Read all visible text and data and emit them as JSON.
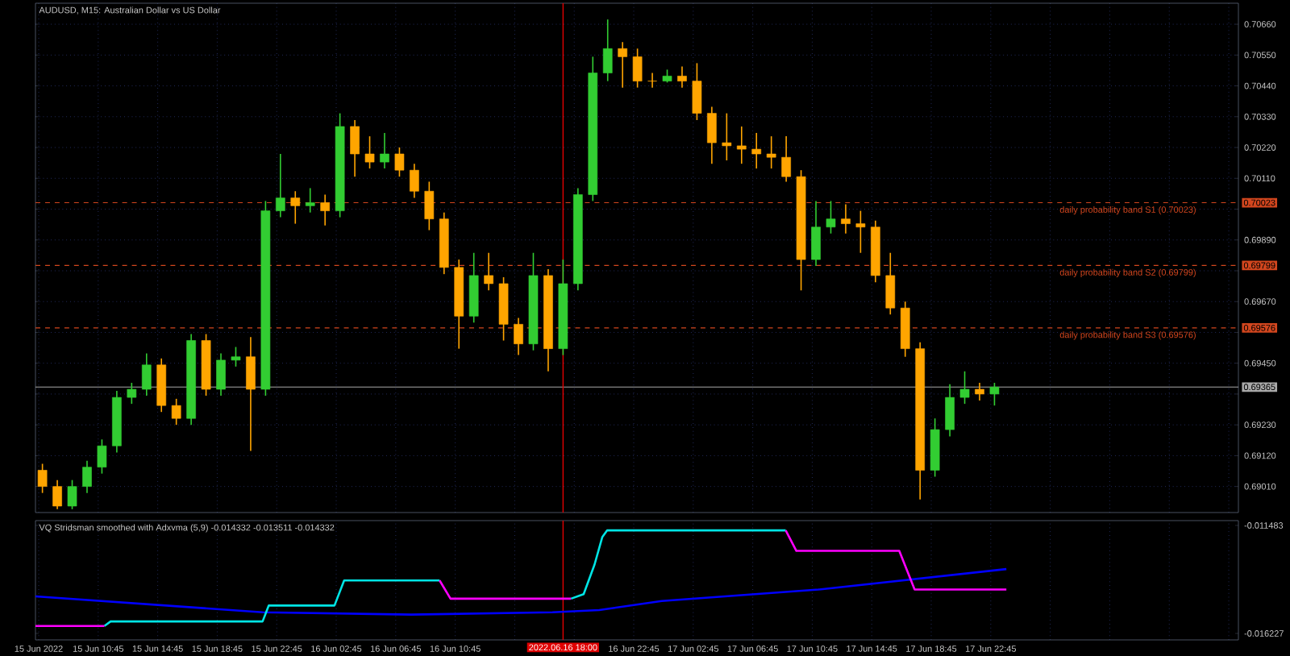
{
  "chart_data": [
    {
      "type": "candlestick",
      "title": "AUDUSD, M15:  Australian Dollar vs US Dollar",
      "x": [
        "2022-06-15T07:00",
        "2022-06-15T08:00",
        "2022-06-15T09:00",
        "2022-06-15T10:00",
        "2022-06-15T11:00",
        "2022-06-15T12:00",
        "2022-06-15T13:00",
        "2022-06-15T14:00",
        "2022-06-15T15:00",
        "2022-06-15T16:00",
        "2022-06-15T17:00",
        "2022-06-15T18:00",
        "2022-06-15T19:00",
        "2022-06-15T20:00",
        "2022-06-15T21:00",
        "2022-06-15T22:00",
        "2022-06-15T23:00",
        "2022-06-16T00:00",
        "2022-06-16T01:00",
        "2022-06-16T02:00",
        "2022-06-16T03:00",
        "2022-06-16T04:00",
        "2022-06-16T05:00",
        "2022-06-16T06:00",
        "2022-06-16T07:00",
        "2022-06-16T08:00",
        "2022-06-16T09:00",
        "2022-06-16T10:00",
        "2022-06-16T11:00",
        "2022-06-16T12:00",
        "2022-06-16T13:00",
        "2022-06-16T14:00",
        "2022-06-16T15:00",
        "2022-06-16T16:00",
        "2022-06-16T17:00",
        "2022-06-16T18:00",
        "2022-06-16T19:00",
        "2022-06-16T20:00",
        "2022-06-16T21:00",
        "2022-06-16T22:00",
        "2022-06-16T23:00",
        "2022-06-17T00:00",
        "2022-06-17T01:00",
        "2022-06-17T02:00",
        "2022-06-17T03:00",
        "2022-06-17T04:00",
        "2022-06-17T05:00",
        "2022-06-17T06:00",
        "2022-06-17T07:00",
        "2022-06-17T08:00",
        "2022-06-17T09:00",
        "2022-06-17T10:00",
        "2022-06-17T11:00",
        "2022-06-17T12:00",
        "2022-06-17T13:00",
        "2022-06-17T14:00",
        "2022-06-17T15:00",
        "2022-06-17T16:00",
        "2022-06-17T17:00",
        "2022-06-17T18:00",
        "2022-06-17T19:00",
        "2022-06-17T20:00",
        "2022-06-17T21:00",
        "2022-06-17T22:00",
        "2022-06-17T23:00"
      ],
      "ohlc": [
        [
          0.69068,
          0.69091,
          0.68987,
          0.6901
        ],
        [
          0.6901,
          0.69033,
          0.68929,
          0.6894
        ],
        [
          0.6894,
          0.69033,
          0.68929,
          0.6901
        ],
        [
          0.6901,
          0.69102,
          0.68987,
          0.69079
        ],
        [
          0.69079,
          0.69178,
          0.69056,
          0.69155
        ],
        [
          0.69155,
          0.69351,
          0.69131,
          0.69328
        ],
        [
          0.69328,
          0.6938,
          0.69305,
          0.69357
        ],
        [
          0.69357,
          0.69485,
          0.69334,
          0.69444
        ],
        [
          0.69444,
          0.69467,
          0.69276,
          0.69299
        ],
        [
          0.69299,
          0.69323,
          0.6923,
          0.69253
        ],
        [
          0.69253,
          0.69554,
          0.6923,
          0.69531
        ],
        [
          0.69531,
          0.69554,
          0.69334,
          0.69357
        ],
        [
          0.69357,
          0.69485,
          0.69334,
          0.69461
        ],
        [
          0.69461,
          0.69508,
          0.69438,
          0.69473
        ],
        [
          0.69473,
          0.69543,
          0.69137,
          0.69357
        ],
        [
          0.69357,
          0.70029,
          0.69334,
          0.69994
        ],
        [
          0.69994,
          0.70197,
          0.69971,
          0.7004
        ],
        [
          0.7004,
          0.70064,
          0.69948,
          0.70012
        ],
        [
          0.70012,
          0.70075,
          0.69988,
          0.70023
        ],
        [
          0.70023,
          0.70052,
          0.69942,
          0.69994
        ],
        [
          0.69994,
          0.70342,
          0.69971,
          0.70295
        ],
        [
          0.70295,
          0.70318,
          0.70116,
          0.70197
        ],
        [
          0.70197,
          0.7026,
          0.70145,
          0.70168
        ],
        [
          0.70168,
          0.70272,
          0.70145,
          0.70197
        ],
        [
          0.70197,
          0.7022,
          0.70116,
          0.70139
        ],
        [
          0.70139,
          0.70162,
          0.7004,
          0.70064
        ],
        [
          0.70064,
          0.70098,
          0.69925,
          0.69965
        ],
        [
          0.69965,
          0.69988,
          0.69768,
          0.69792
        ],
        [
          0.69792,
          0.6982,
          0.69502,
          0.69618
        ],
        [
          0.69618,
          0.69844,
          0.69595,
          0.69763
        ],
        [
          0.69763,
          0.69844,
          0.6971,
          0.69734
        ],
        [
          0.69734,
          0.69757,
          0.69531,
          0.69589
        ],
        [
          0.69589,
          0.69612,
          0.69479,
          0.69519
        ],
        [
          0.69519,
          0.69844,
          0.69496,
          0.69763
        ],
        [
          0.69763,
          0.69786,
          0.69421,
          0.69502
        ],
        [
          0.69502,
          0.6982,
          0.69479,
          0.69734
        ],
        [
          0.69734,
          0.70075,
          0.6971,
          0.70052
        ],
        [
          0.70052,
          0.70544,
          0.70029,
          0.70486
        ],
        [
          0.70486,
          0.70677,
          0.70457,
          0.70573
        ],
        [
          0.70573,
          0.70596,
          0.70434,
          0.70544
        ],
        [
          0.70544,
          0.70573,
          0.70434,
          0.70457
        ],
        [
          0.70457,
          0.70486,
          0.70434,
          0.70457
        ],
        [
          0.70457,
          0.70498,
          0.70452,
          0.70475
        ],
        [
          0.70475,
          0.70509,
          0.70434,
          0.70457
        ],
        [
          0.70457,
          0.70521,
          0.70318,
          0.70342
        ],
        [
          0.70342,
          0.70365,
          0.70162,
          0.70237
        ],
        [
          0.70237,
          0.70342,
          0.70174,
          0.70226
        ],
        [
          0.70226,
          0.70295,
          0.70162,
          0.70214
        ],
        [
          0.70214,
          0.70272,
          0.70145,
          0.70197
        ],
        [
          0.70197,
          0.7026,
          0.70145,
          0.70185
        ],
        [
          0.70185,
          0.7026,
          0.70098,
          0.70116
        ],
        [
          0.70116,
          0.70139,
          0.6971,
          0.6982
        ],
        [
          0.6982,
          0.70029,
          0.69797,
          0.69936
        ],
        [
          0.69936,
          0.70029,
          0.69913,
          0.69965
        ],
        [
          0.69965,
          0.70017,
          0.69913,
          0.69948
        ],
        [
          0.69948,
          0.69994,
          0.69844,
          0.69936
        ],
        [
          0.69936,
          0.69959,
          0.69739,
          0.69763
        ],
        [
          0.69763,
          0.69844,
          0.69624,
          0.69647
        ],
        [
          0.69647,
          0.6967,
          0.69473,
          0.69502
        ],
        [
          0.69502,
          0.69525,
          0.68964,
          0.69068
        ],
        [
          0.69068,
          0.69253,
          0.69045,
          0.69213
        ],
        [
          0.69213,
          0.69375,
          0.69189,
          0.69328
        ],
        [
          0.69328,
          0.69421,
          0.69305,
          0.69357
        ],
        [
          0.69357,
          0.6938,
          0.69317,
          0.6934
        ],
        [
          0.6934,
          0.6938,
          0.69299,
          0.69365
        ]
      ],
      "colors": [
        "#ffa500",
        "#ffa500",
        "#32cd32",
        "#32cd32",
        "#32cd32",
        "#32cd32",
        "#32cd32",
        "#32cd32",
        "#ffa500",
        "#ffa500",
        "#32cd32",
        "#ffa500",
        "#32cd32",
        "#32cd32",
        "#ffa500",
        "#32cd32",
        "#32cd32",
        "#ffa500",
        "#32cd32",
        "#ffa500",
        "#32cd32",
        "#ffa500",
        "#ffa500",
        "#32cd32",
        "#ffa500",
        "#ffa500",
        "#ffa500",
        "#ffa500",
        "#ffa500",
        "#32cd32",
        "#ffa500",
        "#ffa500",
        "#ffa500",
        "#32cd32",
        "#ffa500",
        "#32cd32",
        "#32cd32",
        "#32cd32",
        "#32cd32",
        "#ffa500",
        "#ffa500",
        "#ffa500",
        "#32cd32",
        "#ffa500",
        "#ffa500",
        "#ffa500",
        "#ffa500",
        "#ffa500",
        "#ffa500",
        "#ffa500",
        "#ffa500",
        "#ffa500",
        "#32cd32",
        "#32cd32",
        "#ffa500",
        "#ffa500",
        "#ffa500",
        "#ffa500",
        "#ffa500",
        "#ffa500",
        "#32cd32",
        "#32cd32",
        "#32cd32",
        "#ffa500",
        "#32cd32"
      ],
      "xlim": [
        "2022-06-15T06:32",
        "2022-06-18T15:24"
      ],
      "xticks": [
        {
          "value": "2022-06-15T06:45",
          "label": null
        },
        {
          "value": "2022-06-15T10:45",
          "label": null
        },
        {
          "value": "2022-06-15T14:45",
          "label": null
        },
        {
          "value": "2022-06-15T18:45",
          "label": null
        },
        {
          "value": "2022-06-15T22:45",
          "label": null
        },
        {
          "value": "2022-06-16T02:45",
          "label": null
        },
        {
          "value": "2022-06-16T06:45",
          "label": null
        },
        {
          "value": "2022-06-16T10:45",
          "label": null
        },
        {
          "value": "2022-06-16T14:45",
          "label": null
        },
        {
          "value": "2022-06-16T18:45",
          "label": null
        },
        {
          "value": "2022-06-16T22:45",
          "label": null
        },
        {
          "value": "2022-06-17T02:45",
          "label": null
        },
        {
          "value": "2022-06-17T06:45",
          "label": null
        },
        {
          "value": "2022-06-17T10:45",
          "label": null
        },
        {
          "value": "2022-06-17T14:45",
          "label": null
        },
        {
          "value": "2022-06-17T18:45",
          "label": null
        },
        {
          "value": "2022-06-17T22:45",
          "label": null
        },
        {
          "value": "2022-06-18T02:45",
          "label": null
        },
        {
          "value": "2022-06-18T06:45",
          "label": null
        },
        {
          "value": "2022-06-18T10:45",
          "label": null
        },
        {
          "value": "2022-06-18T14:45",
          "label": null
        }
      ],
      "ylim": [
        0.68917,
        0.70735
      ],
      "yticks": [
        {
          "value": 0.7066,
          "label": "0.70660"
        },
        {
          "value": 0.7055,
          "label": "0.70550"
        },
        {
          "value": 0.7044,
          "label": "0.70440"
        },
        {
          "value": 0.7033,
          "label": "0.70330"
        },
        {
          "value": 0.7022,
          "label": "0.70220"
        },
        {
          "value": 0.7011,
          "label": "0.70110"
        },
        {
          "value": 0.7,
          "label": null
        },
        {
          "value": 0.6989,
          "label": "0.69890"
        },
        {
          "value": 0.6978,
          "label": null
        },
        {
          "value": 0.6967,
          "label": "0.69670"
        },
        {
          "value": 0.6956,
          "label": null
        },
        {
          "value": 0.6945,
          "label": "0.69450"
        },
        {
          "value": 0.6934,
          "label": null
        },
        {
          "value": 0.6923,
          "label": "0.69230"
        },
        {
          "value": 0.6912,
          "label": "0.69120"
        },
        {
          "value": 0.6901,
          "label": "0.69010"
        }
      ],
      "grid": true,
      "tick_labels": "y",
      "ref_lines": [
        {
          "axis": "y",
          "value": 0.70023,
          "label": "daily probability band S1 (0.70023)",
          "color": "#d2461e",
          "line_style": "dashed"
        },
        {
          "axis": "y",
          "value": 0.69799,
          "label": "daily probability band S2 (0.69799)",
          "color": "#d2461e",
          "line_style": "dashed"
        },
        {
          "axis": "y",
          "value": 0.69576,
          "label": "daily probability band S3 (0.69576)",
          "color": "#d2461e",
          "line_style": "dashed"
        },
        {
          "axis": "y",
          "value": 0.69365,
          "color": "#a9a9a9",
          "line_style": "solid"
        },
        {
          "axis": "x",
          "value": "2022-06-16T18:00",
          "color": "#e00000",
          "line_style": "solid"
        }
      ],
      "annotations": [
        {
          "text": "0.70023",
          "x": "2022-06-18T15:24",
          "y": 0.70023
        },
        {
          "text": "0.69799",
          "x": "2022-06-18T15:24",
          "y": 0.69799
        },
        {
          "text": "0.69576",
          "x": "2022-06-18T15:24",
          "y": 0.69576
        },
        {
          "text": "0.69365",
          "x": "2022-06-18T15:24",
          "y": 0.69365
        }
      ]
    },
    {
      "type": "line",
      "title": "VQ Stridsman smoothed with Adxvma (5,9) -0.014332 -0.013511 -0.014332",
      "series": [
        {
          "color": "#0000ff",
          "x": [
            "2022-06-15T06:32",
            "2022-06-15T21:48",
            "2022-06-16T07:48",
            "2022-06-16T17:17",
            "2022-06-16T20:26",
            "2022-06-17T00:38",
            "2022-06-17T11:10",
            "2022-06-17T23:48"
          ],
          "values": [
            -0.0146,
            -0.0153,
            -0.0154,
            -0.0153,
            -0.0152,
            -0.0148,
            -0.0143,
            -0.0134
          ]
        },
        {
          "color": "#00e5e5",
          "x": [
            "2022-06-15T11:10",
            "2022-06-15T11:35",
            "2022-06-15T21:48",
            "2022-06-15T22:13",
            "2022-06-16T02:38",
            "2022-06-16T03:17",
            "2022-06-16T09:42",
            "2022-06-16T09:45",
            "2022-06-16T18:32",
            "2022-06-16T19:23",
            "2022-06-16T20:07",
            "2022-06-16T20:38",
            "2022-06-16T20:58",
            "2022-06-17T08:58"
          ],
          "values": [
            -0.0159,
            -0.0157,
            -0.0157,
            -0.015,
            -0.015,
            -0.0139,
            -0.0139,
            null,
            -0.0147,
            -0.0145,
            -0.0132,
            -0.012,
            -0.0117,
            -0.0117
          ]
        },
        {
          "color": "#ff00ff",
          "x": [
            "2022-06-15T06:32",
            "2022-06-15T11:10",
            "2022-06-15T11:12",
            "2022-06-16T09:42",
            "2022-06-16T10:26",
            "2022-06-16T18:32",
            "2022-06-16T18:36",
            "2022-06-17T08:58",
            "2022-06-17T09:41",
            "2022-06-17T16:36",
            "2022-06-17T17:38",
            "2022-06-17T23:48"
          ],
          "values": [
            -0.0159,
            -0.0159,
            null,
            -0.0139,
            -0.0147,
            -0.0147,
            null,
            -0.0117,
            -0.0126,
            -0.0126,
            -0.0143,
            -0.0143
          ]
        }
      ],
      "xlim": [
        "2022-06-15T06:32",
        "2022-06-18T15:24"
      ],
      "xticks": [
        {
          "value": "2022-06-15T06:45",
          "label": "15 Jun 2022"
        },
        {
          "value": "2022-06-15T10:45",
          "label": "15 Jun 10:45"
        },
        {
          "value": "2022-06-15T14:45",
          "label": "15 Jun 14:45"
        },
        {
          "value": "2022-06-15T18:45",
          "label": "15 Jun 18:45"
        },
        {
          "value": "2022-06-15T22:45",
          "label": "15 Jun 22:45"
        },
        {
          "value": "2022-06-16T02:45",
          "label": "16 Jun 02:45"
        },
        {
          "value": "2022-06-16T06:45",
          "label": "16 Jun 06:45"
        },
        {
          "value": "2022-06-16T10:45",
          "label": "16 Jun 10:45"
        },
        {
          "value": "2022-06-16T14:45",
          "label": null
        },
        {
          "value": "2022-06-16T18:45",
          "label": null
        },
        {
          "value": "2022-06-16T22:45",
          "label": "16 Jun 22:45"
        },
        {
          "value": "2022-06-17T02:45",
          "label": "17 Jun 02:45"
        },
        {
          "value": "2022-06-17T06:45",
          "label": "17 Jun 06:45"
        },
        {
          "value": "2022-06-17T10:45",
          "label": "17 Jun 10:45"
        },
        {
          "value": "2022-06-17T14:45",
          "label": "17 Jun 14:45"
        },
        {
          "value": "2022-06-17T18:45",
          "label": "17 Jun 18:45"
        },
        {
          "value": "2022-06-17T22:45",
          "label": "17 Jun 22:45"
        },
        {
          "value": "2022-06-18T02:45",
          "label": null
        },
        {
          "value": "2022-06-18T06:45",
          "label": null
        },
        {
          "value": "2022-06-18T10:45",
          "label": null
        },
        {
          "value": "2022-06-18T14:45",
          "label": null
        }
      ],
      "ylim": [
        -0.01651,
        -0.011271
      ],
      "yticks": [
        {
          "value": -0.011483,
          "label": "-0.011483"
        },
        {
          "value": -0.016227,
          "label": "-0.016227"
        }
      ],
      "grid": "x",
      "ref_lines": [
        {
          "axis": "x",
          "value": "2022-06-16T18:00",
          "label": "2022.06.16 18:00",
          "color": "#e00000",
          "line_style": "solid"
        }
      ]
    }
  ]
}
